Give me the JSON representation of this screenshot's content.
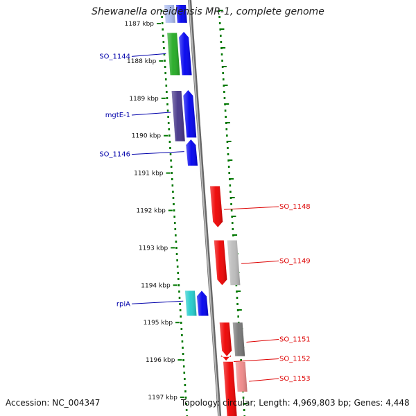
{
  "title": "Shewanella oneidensis MR-1, complete genome",
  "footer": {
    "accession": "Accession: NC_004347",
    "topology": "Topology: circular; Length: 4,969,803 bp; Genes: 4,448"
  },
  "ruler": [
    {
      "label": "1187 kbp",
      "kbp": 1187
    },
    {
      "label": "1188 kbp",
      "kbp": 1188
    },
    {
      "label": "1189 kbp",
      "kbp": 1189
    },
    {
      "label": "1190 kbp",
      "kbp": 1190
    },
    {
      "label": "1191 kbp",
      "kbp": 1191
    },
    {
      "label": "1192 kbp",
      "kbp": 1192
    },
    {
      "label": "1193 kbp",
      "kbp": 1193
    },
    {
      "label": "1194 kbp",
      "kbp": 1194
    },
    {
      "label": "1195 kbp",
      "kbp": 1195
    },
    {
      "label": "1196 kbp",
      "kbp": 1196
    },
    {
      "label": "1197 kbp",
      "kbp": 1197
    }
  ],
  "colors": {
    "left_label": "#0000aa",
    "right_label": "#dd0000",
    "backbone": "#888888",
    "dots": "#007700"
  },
  "genes": [
    {
      "id": "gene-top-a",
      "side": "left",
      "lane": 1,
      "start": 1186.5,
      "end": 1186.98,
      "color": "#aabbee",
      "arrow": false
    },
    {
      "id": "gene-top-b",
      "side": "left",
      "lane": 2,
      "start": 1186.5,
      "end": 1186.98,
      "color": "#0000ee",
      "arrow": false
    },
    {
      "id": "gene-so1144-green",
      "side": "left",
      "lane": 1,
      "start": 1187.25,
      "end": 1188.38,
      "color": "#22aa22",
      "arrow": false
    },
    {
      "id": "gene-so1144",
      "side": "left",
      "lane": 2,
      "start": 1187.22,
      "end": 1188.38,
      "color": "#0000ee",
      "arrow": true
    },
    {
      "id": "gene-mgtE",
      "side": "left",
      "lane": 1,
      "start": 1188.8,
      "end": 1190.15,
      "color": "#443388",
      "arrow": false
    },
    {
      "id": "gene-mgtE-blue",
      "side": "left",
      "lane": 2,
      "start": 1188.78,
      "end": 1190.05,
      "color": "#0000ee",
      "arrow": true
    },
    {
      "id": "gene-so1146",
      "side": "left",
      "lane": 2,
      "start": 1190.1,
      "end": 1190.8,
      "color": "#0000ee",
      "arrow": true
    },
    {
      "id": "gene-so1148",
      "side": "right",
      "lane": 1,
      "start": 1191.35,
      "end": 1192.45,
      "color": "#ee0000",
      "arrow": true
    },
    {
      "id": "gene-so1149",
      "side": "right",
      "lane": 1,
      "start": 1192.8,
      "end": 1194.0,
      "color": "#ee0000",
      "arrow": true
    },
    {
      "id": "gene-so1149-gray",
      "side": "right",
      "lane": 2,
      "start": 1192.8,
      "end": 1194.0,
      "color": "#bbbbbb",
      "arrow": false
    },
    {
      "id": "gene-rpiA",
      "side": "left",
      "lane": 1,
      "start": 1194.15,
      "end": 1194.82,
      "color": "#22cccc",
      "arrow": false
    },
    {
      "id": "gene-rpiA-blue",
      "side": "left",
      "lane": 2,
      "start": 1194.15,
      "end": 1194.82,
      "color": "#0000ee",
      "arrow": true
    },
    {
      "id": "gene-so1151",
      "side": "right",
      "lane": 1,
      "start": 1195.0,
      "end": 1195.9,
      "color": "#ee0000",
      "arrow": true
    },
    {
      "id": "gene-so1151-gray",
      "side": "right",
      "lane": 2,
      "start": 1195.0,
      "end": 1195.9,
      "color": "#777777",
      "arrow": false
    },
    {
      "id": "gene-so1152",
      "side": "right",
      "lane": 1,
      "start": 1195.92,
      "end": 1196.02,
      "color": "#ee0000",
      "arrow": true
    },
    {
      "id": "gene-so1153",
      "side": "right",
      "lane": 1,
      "start": 1196.05,
      "end": 1197.6,
      "color": "#ee0000",
      "arrow": false
    },
    {
      "id": "gene-so1153-pink",
      "side": "right",
      "lane": 2,
      "start": 1196.05,
      "end": 1196.85,
      "color": "#f08888",
      "arrow": false
    }
  ],
  "labels": [
    {
      "text": "SO_1144",
      "side": "left",
      "kbp": 1187.88,
      "target": "gene-so1144-green"
    },
    {
      "text": "mgtE-1",
      "side": "left",
      "kbp": 1189.45,
      "target": "gene-mgtE"
    },
    {
      "text": "SO_1146",
      "side": "left",
      "kbp": 1190.5,
      "target": "gene-so1146"
    },
    {
      "text": "SO_1148",
      "side": "right",
      "kbp": 1191.9,
      "target": "gene-so1148"
    },
    {
      "text": "SO_1149",
      "side": "right",
      "kbp": 1193.35,
      "target": "gene-so1149-gray"
    },
    {
      "text": "rpiA",
      "side": "left",
      "kbp": 1194.5,
      "target": "gene-rpiA"
    },
    {
      "text": "SO_1151",
      "side": "right",
      "kbp": 1195.45,
      "target": "gene-so1151-gray"
    },
    {
      "text": "SO_1152",
      "side": "right",
      "kbp": 1195.97,
      "target": "gene-so1152"
    },
    {
      "text": "SO_1153",
      "side": "right",
      "kbp": 1196.5,
      "target": "gene-so1153-pink"
    }
  ]
}
